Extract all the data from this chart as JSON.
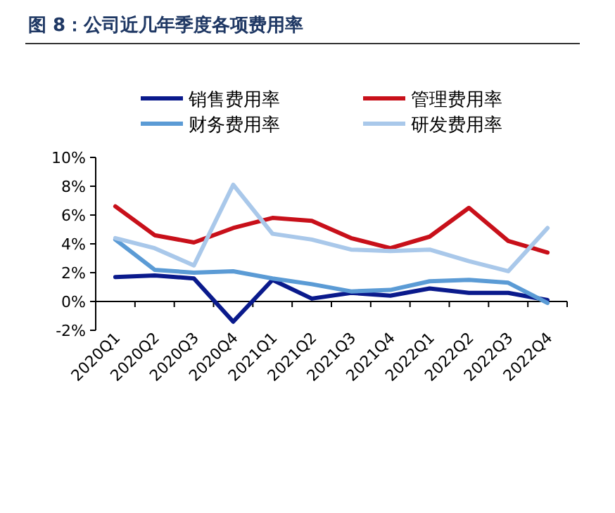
{
  "chart_data": {
    "type": "line",
    "title": "图 8：公司近几年季度各项费用率",
    "categories": [
      "2020Q1",
      "2020Q2",
      "2020Q3",
      "2020Q4",
      "2021Q1",
      "2021Q2",
      "2021Q3",
      "2021Q4",
      "2022Q1",
      "2022Q2",
      "2022Q3",
      "2022Q4"
    ],
    "series": [
      {
        "name": "销售费用率",
        "color": "#0a1a8c",
        "values": [
          1.7,
          1.8,
          1.6,
          -1.4,
          1.5,
          0.2,
          0.6,
          0.4,
          0.9,
          0.6,
          0.6,
          0.1
        ]
      },
      {
        "name": "管理费用率",
        "color": "#c8101a",
        "values": [
          6.6,
          4.6,
          4.1,
          5.1,
          5.8,
          5.6,
          4.4,
          3.7,
          4.5,
          6.5,
          4.2,
          3.4
        ]
      },
      {
        "name": "财务费用率",
        "color": "#5b9bd5",
        "values": [
          4.3,
          2.2,
          2.0,
          2.1,
          1.6,
          1.2,
          0.7,
          0.8,
          1.4,
          1.5,
          1.3,
          -0.1
        ]
      },
      {
        "name": "研发费用率",
        "color": "#a9c8ea",
        "values": [
          4.4,
          3.7,
          2.5,
          8.1,
          4.7,
          4.3,
          3.6,
          3.5,
          3.6,
          2.8,
          2.1,
          5.1
        ]
      }
    ],
    "ylim": [
      -2,
      10
    ],
    "yticks": [
      {
        "value": -2,
        "label": "-2%"
      },
      {
        "value": 0,
        "label": "0%"
      },
      {
        "value": 2,
        "label": "2%"
      },
      {
        "value": 4,
        "label": "4%"
      },
      {
        "value": 6,
        "label": "6%"
      },
      {
        "value": 8,
        "label": "8%"
      },
      {
        "value": 10,
        "label": "10%"
      }
    ],
    "legend": "top",
    "grid": false,
    "marker": "none",
    "line_style": "solid"
  }
}
